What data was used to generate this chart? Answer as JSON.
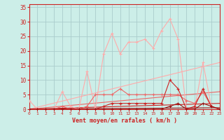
{
  "xlabel": "Vent moyen/en rafales ( km/h )",
  "bg_color": "#cceee8",
  "grid_color": "#aacccc",
  "x_ticks": [
    0,
    1,
    2,
    3,
    4,
    5,
    6,
    7,
    8,
    9,
    10,
    11,
    12,
    13,
    14,
    15,
    16,
    17,
    18,
    19,
    20,
    21,
    22,
    23
  ],
  "y_ticks": [
    0,
    5,
    10,
    15,
    20,
    25,
    30,
    35
  ],
  "xlim": [
    0,
    23
  ],
  "ylim": [
    0,
    36
  ],
  "lines": [
    {
      "x": [
        0,
        1,
        2,
        3,
        4,
        5,
        6,
        7,
        8,
        9,
        10,
        11,
        12,
        13,
        14,
        15,
        16,
        17,
        18,
        19,
        20,
        21,
        22,
        23
      ],
      "y": [
        3,
        0,
        0,
        0,
        6,
        1,
        0,
        13,
        0,
        19,
        26,
        19,
        23,
        23,
        24,
        21,
        27,
        31,
        24,
        0,
        0,
        16,
        1,
        0
      ],
      "color": "#ffaaaa",
      "lw": 0.8,
      "marker": "+",
      "ms": 3,
      "zorder": 3,
      "linestyle": "-"
    },
    {
      "x": [
        0,
        1,
        2,
        3,
        4,
        5,
        6,
        7,
        8,
        9,
        10,
        11,
        12,
        13,
        14,
        15,
        16,
        17,
        18,
        19,
        20,
        21,
        22,
        23
      ],
      "y": [
        0,
        0,
        0,
        0,
        1,
        0,
        0,
        1,
        5,
        5,
        5,
        7,
        5,
        5,
        5,
        5,
        5,
        5,
        5,
        3,
        2,
        6,
        1,
        0
      ],
      "color": "#ee6666",
      "lw": 0.8,
      "marker": "+",
      "ms": 3,
      "zorder": 4,
      "linestyle": "-"
    },
    {
      "x": [
        0,
        1,
        2,
        3,
        4,
        5,
        6,
        7,
        8,
        9,
        10,
        11,
        12,
        13,
        14,
        15,
        16,
        17,
        18,
        19,
        20,
        21,
        22,
        23
      ],
      "y": [
        0,
        0,
        0,
        0,
        0,
        0,
        0,
        0,
        0,
        1,
        2,
        2,
        2,
        2,
        2,
        2,
        2,
        10,
        7,
        0,
        1,
        7,
        1,
        0
      ],
      "color": "#cc2222",
      "lw": 0.8,
      "marker": "+",
      "ms": 3,
      "zorder": 5,
      "linestyle": "-"
    },
    {
      "x": [
        0,
        1,
        2,
        3,
        4,
        5,
        6,
        7,
        8,
        9,
        10,
        11,
        12,
        13,
        14,
        15,
        16,
        17,
        18,
        19,
        20,
        21,
        22,
        23
      ],
      "y": [
        0,
        0,
        0,
        0,
        0,
        0,
        0,
        0,
        0,
        0,
        0,
        0,
        0,
        0,
        0,
        0,
        0,
        1,
        2,
        0,
        0,
        2,
        1,
        0
      ],
      "color": "#991111",
      "lw": 0.8,
      "marker": "+",
      "ms": 3,
      "zorder": 6,
      "linestyle": "-"
    },
    {
      "x": [
        0,
        23
      ],
      "y": [
        0,
        16
      ],
      "color": "#ffaaaa",
      "lw": 0.8,
      "marker": null,
      "ms": 0,
      "zorder": 2,
      "linestyle": "-"
    },
    {
      "x": [
        0,
        23
      ],
      "y": [
        0,
        6
      ],
      "color": "#ee6666",
      "lw": 0.8,
      "marker": null,
      "ms": 0,
      "zorder": 2,
      "linestyle": "-"
    },
    {
      "x": [
        0,
        23
      ],
      "y": [
        0,
        2
      ],
      "color": "#cc2222",
      "lw": 0.8,
      "marker": null,
      "ms": 0,
      "zorder": 2,
      "linestyle": "-"
    },
    {
      "x": [
        0,
        23
      ],
      "y": [
        0,
        0.5
      ],
      "color": "#991111",
      "lw": 0.8,
      "marker": null,
      "ms": 0,
      "zorder": 2,
      "linestyle": "-"
    }
  ]
}
